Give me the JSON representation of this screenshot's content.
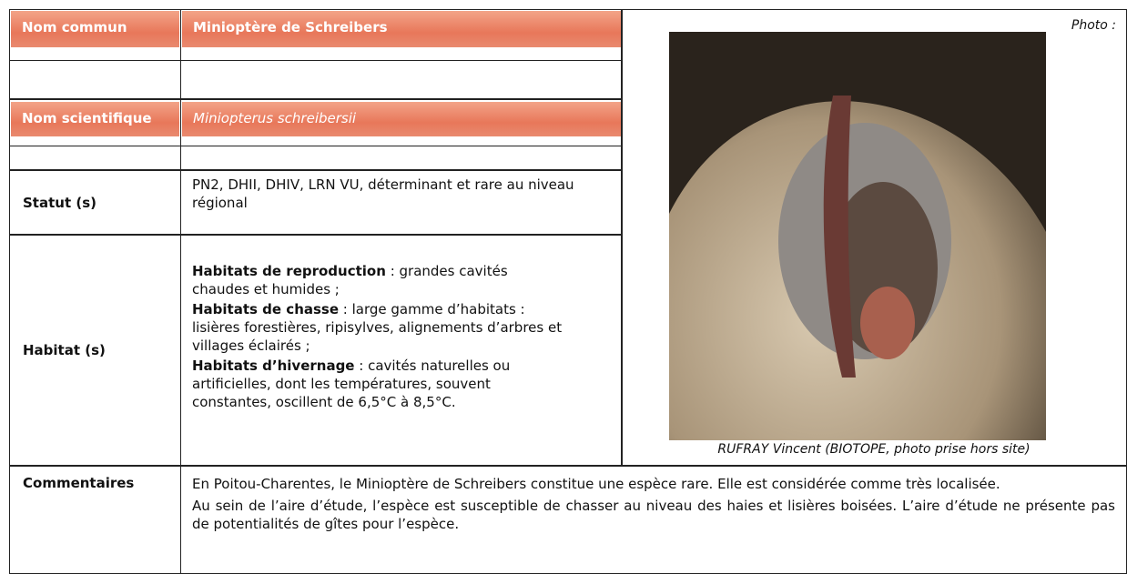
{
  "rows": {
    "common_name": {
      "label": "Nom commun",
      "value": "Minioptère de Schreibers"
    },
    "scientific_name": {
      "label": "Nom scientifique",
      "value": "Miniopterus schreibersii"
    },
    "status": {
      "label": "Statut (s)",
      "value": "PN2, DHII, DHIV, LRN VU, déterminant et rare au niveau régional"
    },
    "habitat": {
      "label": "Habitat (s)",
      "items": [
        {
          "term": "Habitats de reproduction",
          "text": " : grandes cavités chaudes et humides ;"
        },
        {
          "term": "Habitats de chasse",
          "text": " : large gamme d’habitats : lisières forestières, ripisylves, alignements d’arbres et villages éclairés ;"
        },
        {
          "term": "Habitats d’hivernage",
          "text": " : cavités naturelles ou artificielles, dont les températures, souvent constantes, oscillent de 6,5°C à 8,5°C."
        }
      ]
    },
    "comments": {
      "label": "Commentaires",
      "paragraphs": [
        "En Poitou-Charentes, le Minioptère de Schreibers constitue une espèce rare. Elle est considérée comme très localisée.",
        "Au sein de l’aire d’étude, l’espèce est susceptible de chasser au niveau des haies et lisières boisées. L’aire d’étude ne présente pas de potentialités de gîtes pour l’espèce."
      ]
    }
  },
  "photo": {
    "label": "Photo :",
    "credit": "RUFRAY Vincent (BIOTOPE, photo prise hors site)"
  }
}
